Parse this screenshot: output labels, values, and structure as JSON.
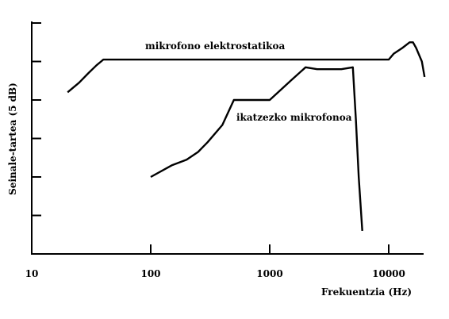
{
  "chart_data": {
    "type": "line",
    "title": "",
    "xlabel": "Frekuentzia (Hz)",
    "ylabel": "Seinale-tartea (5 dB)",
    "x_scale": "log",
    "xlim": [
      10,
      20000
    ],
    "ylim": [
      0,
      6
    ],
    "x_ticks": [
      10,
      100,
      1000,
      10000
    ],
    "x_tick_labels": [
      "10",
      "100",
      "1000",
      "10000"
    ],
    "y_ticks": [
      0,
      1,
      2,
      3,
      4,
      5,
      6
    ],
    "grid": false,
    "legend": "none",
    "series": [
      {
        "name": "mikrofono elektrostatikoa",
        "x": [
          20,
          25,
          30,
          35,
          40,
          100,
          1000,
          10000,
          11000,
          13000,
          15000,
          16000,
          17000,
          19000,
          20000
        ],
        "y": [
          4.2,
          4.45,
          4.7,
          4.9,
          5.05,
          5.05,
          5.05,
          5.05,
          5.2,
          5.35,
          5.5,
          5.5,
          5.35,
          5.0,
          4.6
        ]
      },
      {
        "name": "ikatzezko mikrofonoa",
        "x": [
          100,
          150,
          200,
          250,
          300,
          400,
          500,
          700,
          1000,
          1500,
          2000,
          2500,
          3000,
          4000,
          5000,
          5300,
          5600,
          6000
        ],
        "y": [
          2.0,
          2.3,
          2.45,
          2.65,
          2.9,
          3.35,
          4.0,
          4.0,
          4.0,
          4.5,
          4.85,
          4.8,
          4.8,
          4.8,
          4.85,
          3.5,
          2.0,
          0.6
        ]
      }
    ]
  }
}
